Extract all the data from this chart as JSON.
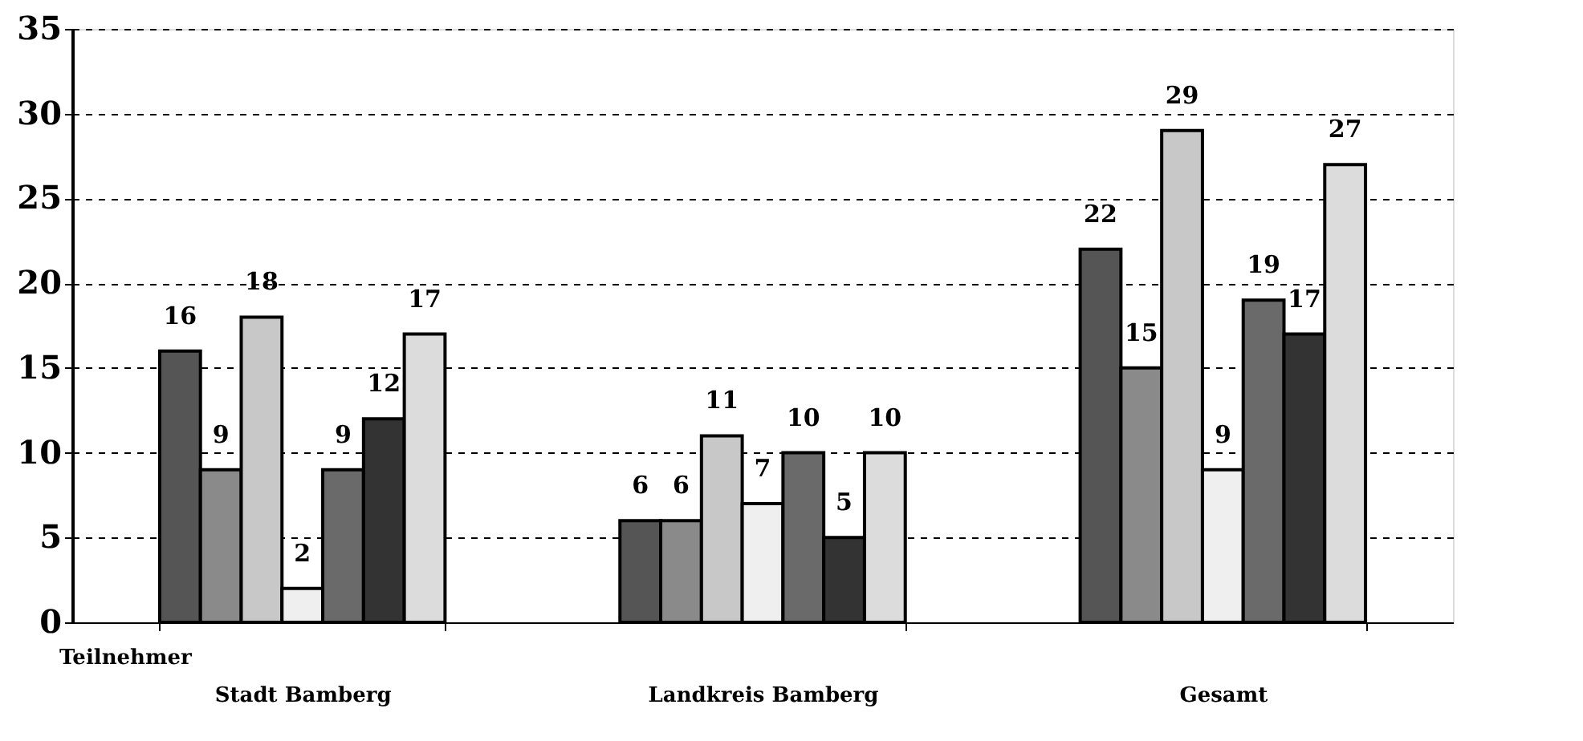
{
  "chart_data": {
    "type": "bar",
    "categories": [
      "Stadt Bamberg",
      "Landkreis Bamberg",
      "Gesamt"
    ],
    "series": [
      {
        "color": "#555555",
        "values": [
          16,
          6,
          22
        ]
      },
      {
        "color": "#8a8a8a",
        "values": [
          9,
          6,
          15
        ]
      },
      {
        "color": "#c8c8c8",
        "values": [
          18,
          11,
          29
        ]
      },
      {
        "color": "#efefef",
        "values": [
          2,
          7,
          9
        ]
      },
      {
        "color": "#6a6a6a",
        "values": [
          9,
          10,
          19
        ]
      },
      {
        "color": "#333333",
        "values": [
          12,
          5,
          17
        ]
      },
      {
        "color": "#dcdcdc",
        "values": [
          17,
          10,
          27
        ]
      }
    ],
    "ylim": [
      0,
      35
    ],
    "yticks": [
      0,
      5,
      10,
      15,
      20,
      25,
      30,
      35
    ],
    "grid": "y",
    "data_labels": true,
    "annotations": [
      "Teilnehmer"
    ]
  }
}
